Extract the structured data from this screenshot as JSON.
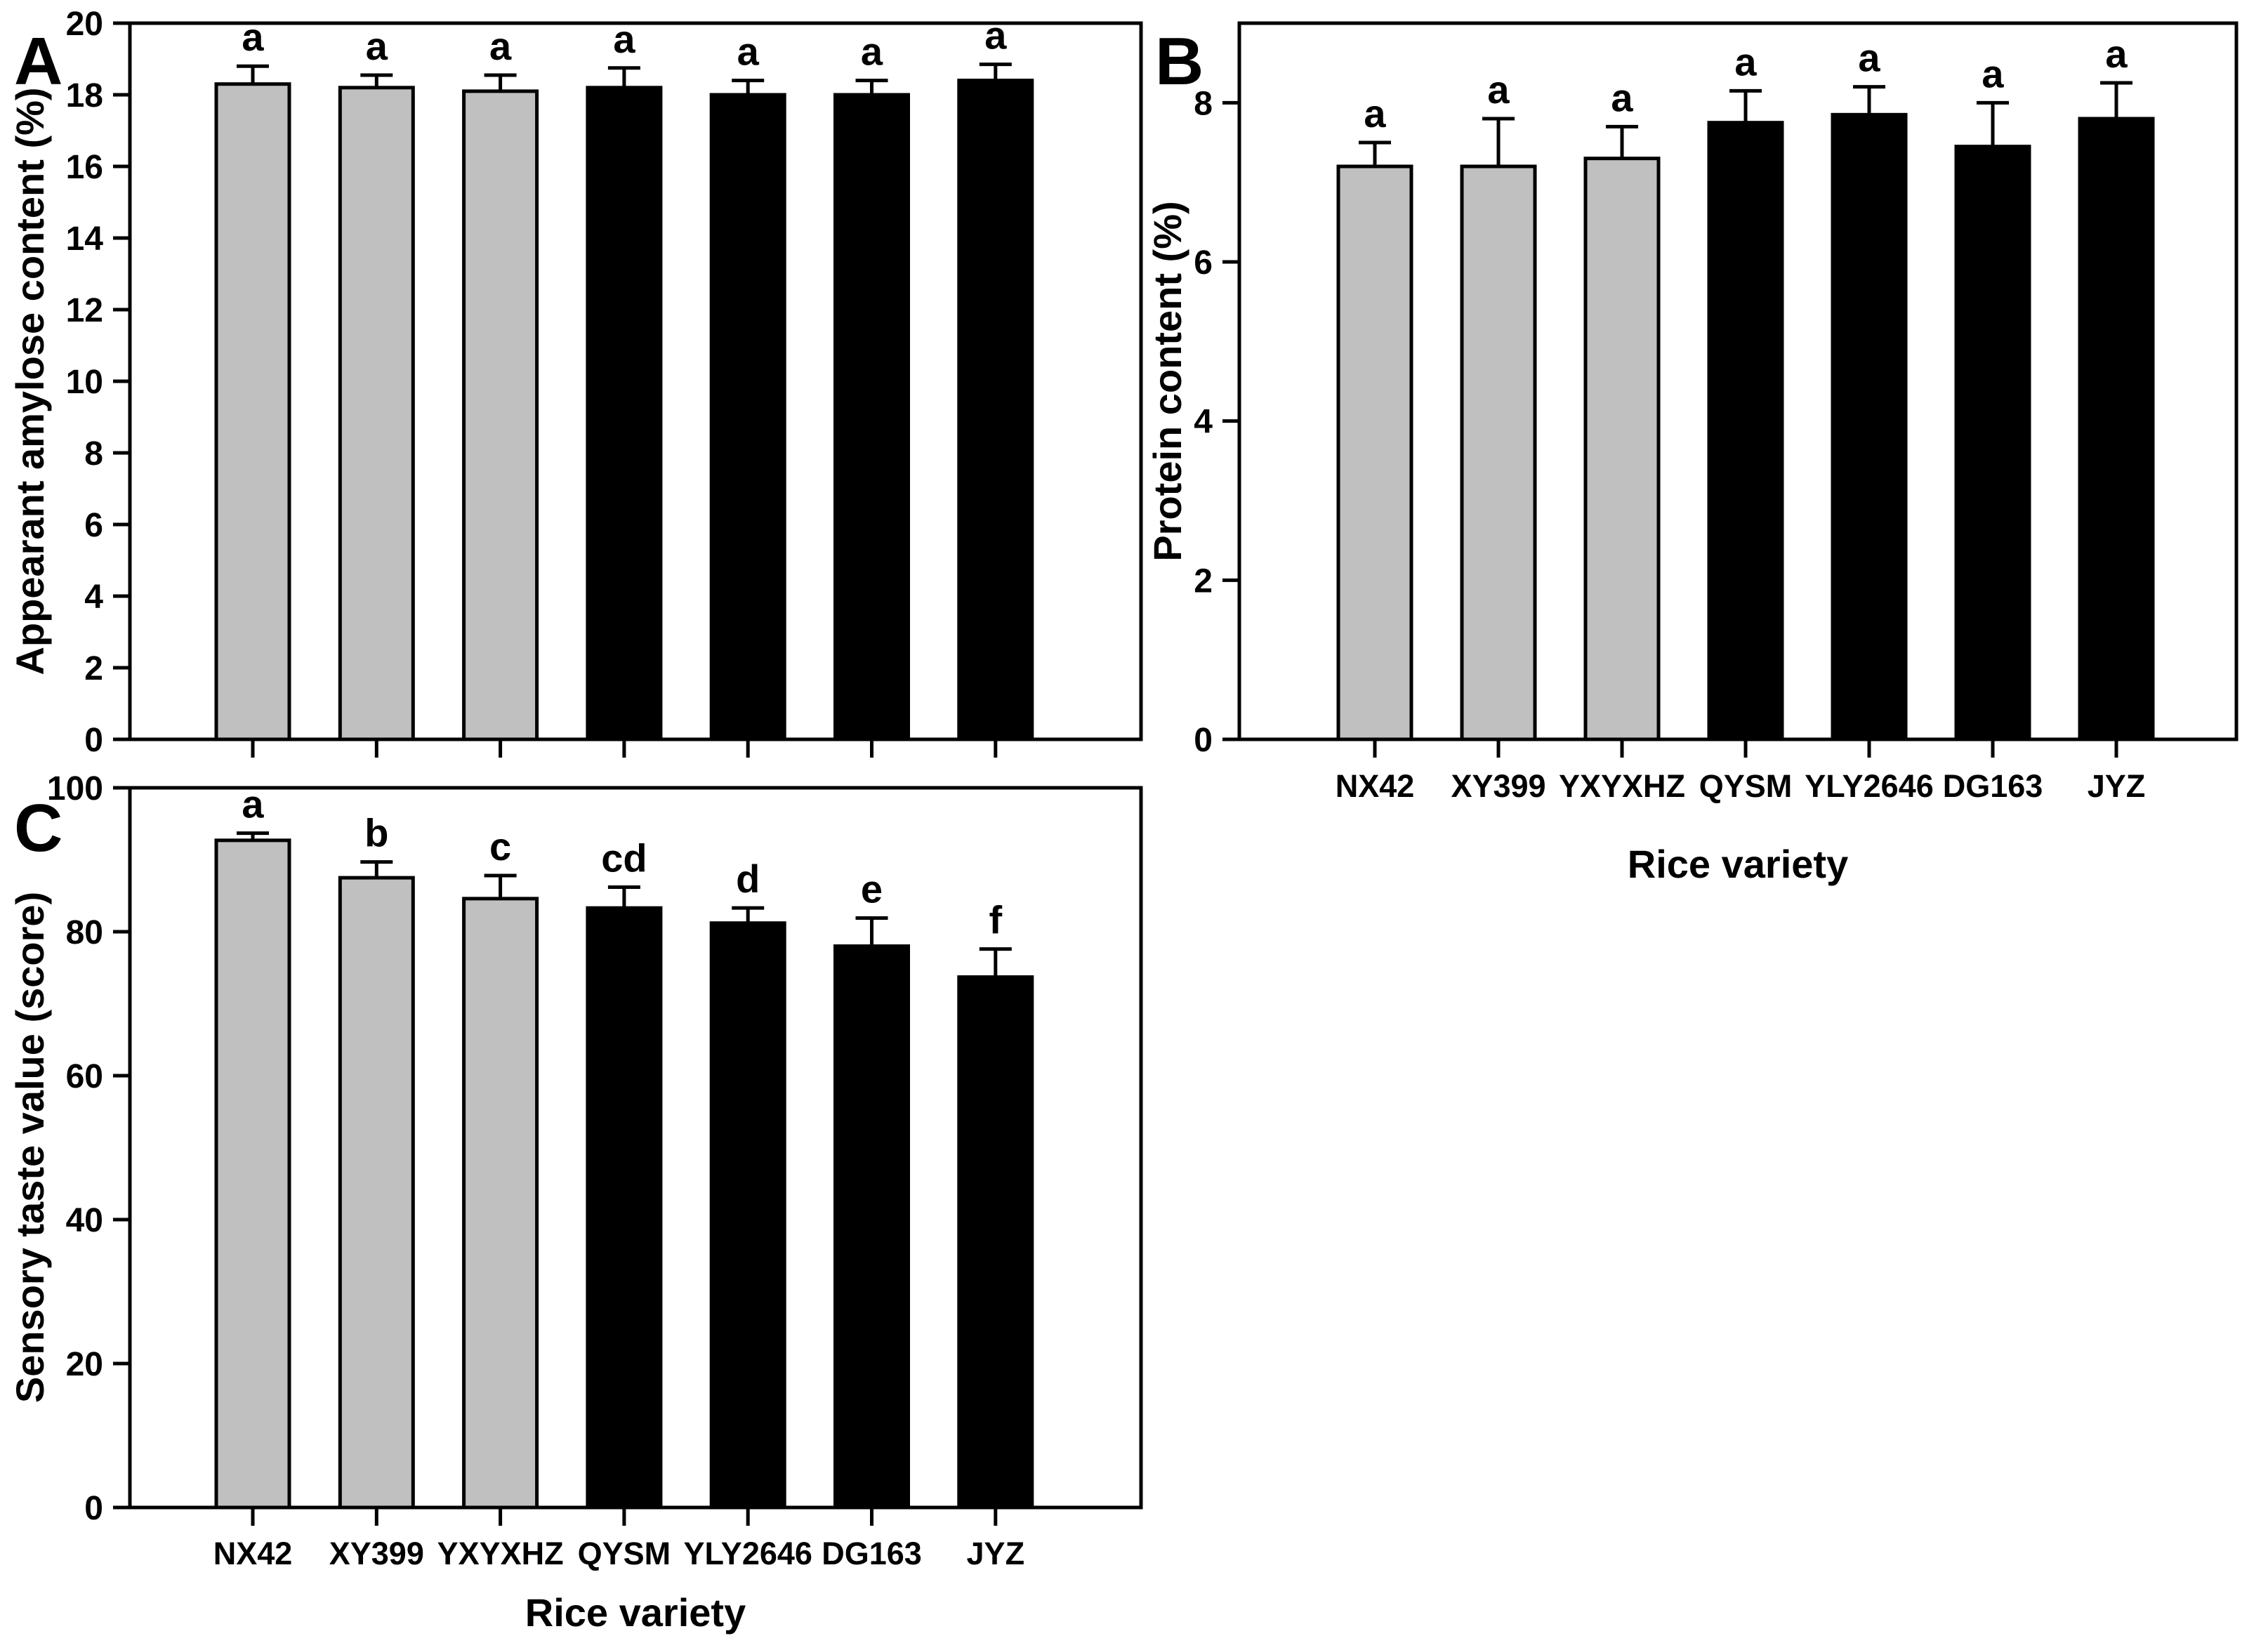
{
  "figure": {
    "background": "#ffffff",
    "description": "Three-panel bar figure comparing grain quality traits of seven rice varieties",
    "x_axis_title": "Rice variety"
  },
  "colors": {
    "conventional_bar_fill": "#c0c0c0",
    "hybrid_bar_fill": "#000000",
    "bar_edge": "#000000",
    "axis": "#000000",
    "background": "#ffffff"
  },
  "chart_data": [
    {
      "type": "bar",
      "panel_label": "A",
      "title": "",
      "xlabel": "",
      "ylabel": "Appearant amylose content (%)",
      "categories": [
        "NX42",
        "XY399",
        "YXYXHZ",
        "QYSM",
        "YLY2646",
        "DG163",
        "JYZ"
      ],
      "values": [
        18.3,
        18.2,
        18.1,
        18.2,
        18.0,
        18.0,
        18.4
      ],
      "errors_plus": [
        0.5,
        0.35,
        0.45,
        0.55,
        0.4,
        0.4,
        0.45
      ],
      "sig_letters": [
        "a",
        "a",
        "a",
        "a",
        "a",
        "a",
        "a"
      ],
      "bar_color_keys": [
        "conventional_bar_fill",
        "conventional_bar_fill",
        "conventional_bar_fill",
        "hybrid_bar_fill",
        "hybrid_bar_fill",
        "hybrid_bar_fill",
        "hybrid_bar_fill"
      ],
      "ylim": [
        0,
        20
      ],
      "yticks": [
        0,
        2,
        4,
        6,
        8,
        10,
        12,
        14,
        16,
        18,
        20
      ],
      "show_x_tick_labels": false,
      "grid": false,
      "legend": "none"
    },
    {
      "type": "bar",
      "panel_label": "B",
      "title": "",
      "xlabel": "Rice variety",
      "ylabel": "Protein content (%)",
      "categories": [
        "NX42",
        "XY399",
        "YXYXHZ",
        "QYSM",
        "YLY2646",
        "DG163",
        "JYZ"
      ],
      "values": [
        7.2,
        7.2,
        7.3,
        7.75,
        7.85,
        7.45,
        7.8
      ],
      "errors_plus": [
        0.3,
        0.6,
        0.4,
        0.4,
        0.35,
        0.55,
        0.45
      ],
      "sig_letters": [
        "a",
        "a",
        "a",
        "a",
        "a",
        "a",
        "a"
      ],
      "bar_color_keys": [
        "conventional_bar_fill",
        "conventional_bar_fill",
        "conventional_bar_fill",
        "hybrid_bar_fill",
        "hybrid_bar_fill",
        "hybrid_bar_fill",
        "hybrid_bar_fill"
      ],
      "ylim": [
        0,
        9
      ],
      "yticks": [
        0,
        2,
        4,
        6,
        8
      ],
      "show_x_tick_labels": true,
      "grid": false,
      "legend": "none"
    },
    {
      "type": "bar",
      "panel_label": "C",
      "title": "",
      "xlabel": "Rice variety",
      "ylabel": "Sensory taste value (score)",
      "categories": [
        "NX42",
        "XY399",
        "YXYXHZ",
        "QYSM",
        "YLY2646",
        "DG163",
        "JYZ"
      ],
      "values": [
        92.7,
        87.5,
        84.6,
        83.3,
        81.2,
        78.0,
        73.7
      ],
      "errors_plus": [
        1.0,
        2.2,
        3.2,
        2.9,
        2.1,
        3.9,
        3.9
      ],
      "sig_letters": [
        "a",
        "b",
        "c",
        "cd",
        "d",
        "e",
        "f"
      ],
      "bar_color_keys": [
        "conventional_bar_fill",
        "conventional_bar_fill",
        "conventional_bar_fill",
        "hybrid_bar_fill",
        "hybrid_bar_fill",
        "hybrid_bar_fill",
        "hybrid_bar_fill"
      ],
      "ylim": [
        0,
        100
      ],
      "yticks": [
        0,
        20,
        40,
        60,
        80,
        100
      ],
      "show_x_tick_labels": true,
      "grid": false,
      "legend": "none"
    }
  ]
}
